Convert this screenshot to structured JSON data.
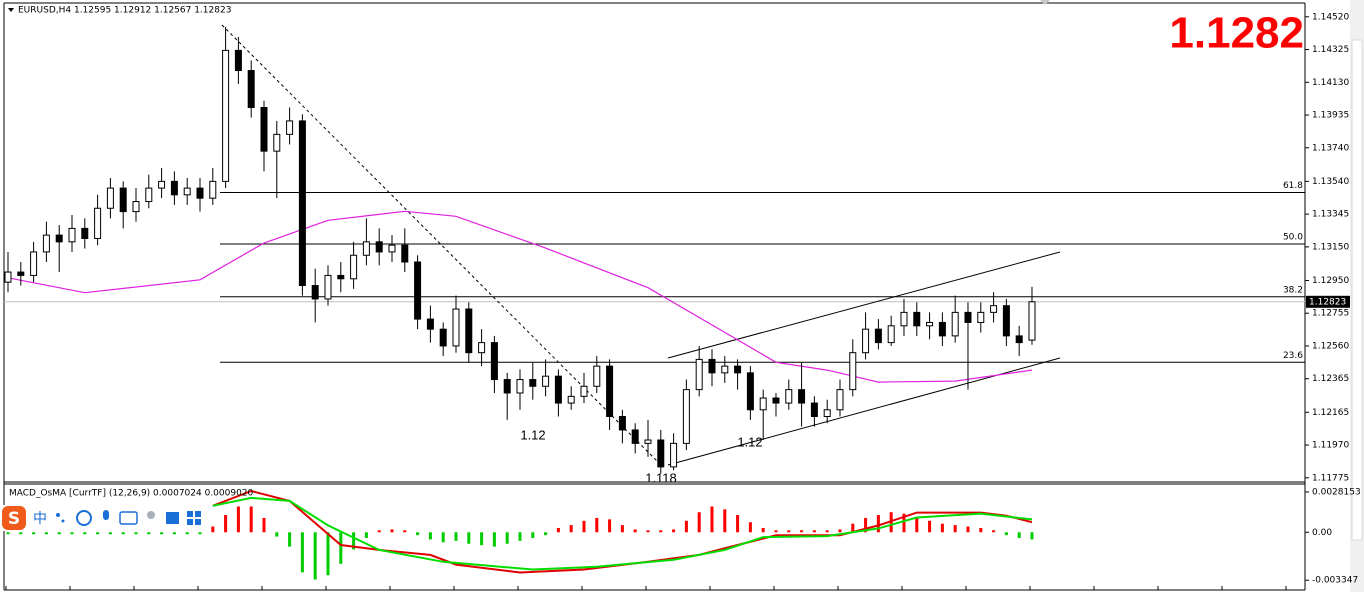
{
  "chart_data": [
    {
      "type": "candlestick",
      "header": "EURUSD,H4  1.12595 1.12912 1.12567 1.12823",
      "big_price": "1.1282",
      "xlim": [
        -0.3125,
        101.33
      ],
      "ylim": [
        1.1175,
        1.1462
      ],
      "yticks": [
        {
          "value": 1.1452,
          "label": "1.14520"
        },
        1.14325,
        {
          "value": 1.1413,
          "label": "1.14130"
        },
        1.13935,
        {
          "value": 1.1374,
          "label": "1.13740"
        },
        {
          "value": 1.1354,
          "label": "1.13540"
        },
        1.13345,
        {
          "value": 1.1315,
          "label": "1.13150"
        },
        {
          "value": 1.1295,
          "label": "1.12950"
        },
        1.12755,
        {
          "value": 1.1256,
          "label": "1.12560"
        },
        1.12365,
        1.12165,
        {
          "value": 1.1197,
          "label": "1.11970"
        },
        1.11775
      ],
      "open": [
        1.1294,
        1.13,
        1.1298,
        1.1312,
        1.1322,
        1.1318,
        1.1326,
        1.132,
        1.1338,
        1.135,
        1.1336,
        1.1342,
        1.135,
        1.1354,
        1.1346,
        1.135,
        1.1344,
        1.1354,
        1.1432,
        1.142,
        1.1398,
        1.1372,
        1.1382,
        1.139,
        1.1292,
        1.1284,
        1.1298,
        1.1296,
        1.131,
        1.1318,
        1.1312,
        1.1316,
        1.1306,
        1.1272,
        1.1266,
        1.1256,
        1.1278,
        1.1252,
        1.1258,
        1.1236,
        1.1228,
        1.1236,
        1.1232,
        1.1238,
        1.1222,
        1.1226,
        1.1232,
        1.1244,
        1.1214,
        1.1206,
        1.1198,
        1.12,
        1.1184,
        1.1198,
        1.123,
        1.1248,
        1.124,
        1.1244,
        1.124,
        1.1218,
        1.1225,
        1.1222,
        1.123,
        1.1222,
        1.1214,
        1.1218,
        1.123,
        1.1252,
        1.1266,
        1.1258,
        1.1268,
        1.1276,
        1.1268,
        1.127,
        1.1262,
        1.1276,
        1.127,
        1.1276,
        1.128,
        1.1262,
        1.12595
      ],
      "high": [
        1.1312,
        1.1306,
        1.1318,
        1.133,
        1.1328,
        1.1334,
        1.1332,
        1.1346,
        1.1356,
        1.1354,
        1.135,
        1.1358,
        1.1362,
        1.136,
        1.1356,
        1.1356,
        1.1362,
        1.1446,
        1.144,
        1.1426,
        1.1402,
        1.139,
        1.1398,
        1.1394,
        1.1302,
        1.1304,
        1.1306,
        1.1318,
        1.1332,
        1.1326,
        1.1322,
        1.1326,
        1.131,
        1.128,
        1.127,
        1.1286,
        1.1282,
        1.1266,
        1.1262,
        1.124,
        1.1242,
        1.1246,
        1.1248,
        1.1242,
        1.1232,
        1.124,
        1.125,
        1.1248,
        1.1218,
        1.121,
        1.1212,
        1.1206,
        1.1204,
        1.1236,
        1.1256,
        1.1254,
        1.125,
        1.1248,
        1.1244,
        1.123,
        1.1228,
        1.1236,
        1.1246,
        1.1226,
        1.1224,
        1.1236,
        1.126,
        1.1276,
        1.1272,
        1.1274,
        1.1284,
        1.1282,
        1.1276,
        1.1276,
        1.1286,
        1.1282,
        1.1282,
        1.1288,
        1.1284,
        1.1268,
        1.12912
      ],
      "low": [
        1.1288,
        1.1292,
        1.1294,
        1.1306,
        1.13,
        1.1312,
        1.1314,
        1.1316,
        1.1332,
        1.1326,
        1.133,
        1.1338,
        1.1344,
        1.134,
        1.134,
        1.1336,
        1.134,
        1.135,
        1.1412,
        1.1392,
        1.136,
        1.1344,
        1.1376,
        1.1286,
        1.127,
        1.128,
        1.1288,
        1.129,
        1.1304,
        1.1304,
        1.1306,
        1.13,
        1.1266,
        1.1258,
        1.125,
        1.1252,
        1.1246,
        1.1244,
        1.1228,
        1.1212,
        1.1218,
        1.1224,
        1.1226,
        1.1214,
        1.1218,
        1.1222,
        1.1228,
        1.1206,
        1.1198,
        1.1192,
        1.119,
        1.118,
        1.1182,
        1.1194,
        1.1226,
        1.1232,
        1.1234,
        1.123,
        1.1212,
        1.12,
        1.1214,
        1.1218,
        1.1208,
        1.1208,
        1.121,
        1.1214,
        1.1226,
        1.1248,
        1.1254,
        1.1256,
        1.1262,
        1.1262,
        1.126,
        1.1256,
        1.1258,
        1.123,
        1.1264,
        1.127,
        1.1256,
        1.125,
        1.12567
      ],
      "close": [
        1.13,
        1.1298,
        1.1312,
        1.1322,
        1.1318,
        1.1326,
        1.132,
        1.1338,
        1.135,
        1.1336,
        1.1342,
        1.135,
        1.1354,
        1.1346,
        1.135,
        1.1344,
        1.1354,
        1.1432,
        1.142,
        1.1398,
        1.1372,
        1.1382,
        1.139,
        1.1292,
        1.1284,
        1.1298,
        1.1296,
        1.131,
        1.1318,
        1.1312,
        1.1316,
        1.1306,
        1.1272,
        1.1266,
        1.1256,
        1.1278,
        1.1252,
        1.1258,
        1.1236,
        1.1228,
        1.1236,
        1.1232,
        1.1238,
        1.1222,
        1.1226,
        1.1232,
        1.1244,
        1.1214,
        1.1206,
        1.1198,
        1.12,
        1.1184,
        1.1198,
        1.123,
        1.1248,
        1.124,
        1.1244,
        1.124,
        1.1218,
        1.1225,
        1.1222,
        1.123,
        1.1222,
        1.1214,
        1.1218,
        1.123,
        1.1252,
        1.1266,
        1.1258,
        1.1268,
        1.1276,
        1.1268,
        1.127,
        1.1262,
        1.1276,
        1.127,
        1.1276,
        1.128,
        1.1262,
        1.1258,
        1.12823
      ],
      "bull_color": "#ffffff",
      "bear_color": "#000000",
      "ma": {
        "color": "#e020e0",
        "x": [
          0,
          6,
          15,
          20,
          25,
          31,
          35,
          42,
          50,
          56,
          60,
          64,
          68,
          74,
          80
        ],
        "values": [
          1.12966,
          1.12877,
          1.12954,
          1.13173,
          1.13308,
          1.13362,
          1.13332,
          1.13143,
          1.12907,
          1.12641,
          1.12463,
          1.12416,
          1.12345,
          1.12351,
          1.12416
        ]
      },
      "fib_levels": [
        {
          "value": 1.13474,
          "label": "61.8"
        },
        {
          "value": 1.13167,
          "label": "50.0"
        },
        {
          "value": 1.12853,
          "label": "38.2"
        },
        {
          "value": 1.12463,
          "label": "23.6"
        }
      ],
      "last_price": {
        "value": 1.12823,
        "label": "1.12823"
      },
      "annotations": [
        "1.12",
        "1.12",
        "1.118"
      ],
      "ime": "中"
    },
    {
      "type": "bar",
      "title": "MACD_OsMA [CurrTF] (12,26,9) 0.0007024 0.0009020",
      "xlim": [
        -0.3125,
        101.33
      ],
      "ylim": [
        -0.00403,
        0.0033
      ],
      "yticks": [
        0.0028153,
        {
          "value": 0,
          "label": "0.00"
        },
        -0.003347
      ],
      "values": [
        -5e-05,
        -5e-05,
        -5e-05,
        -5e-05,
        -5e-05,
        -5e-05,
        -5e-05,
        -5e-05,
        -5e-05,
        -5e-05,
        -5e-05,
        -5e-05,
        -5e-05,
        -5e-05,
        -5e-05,
        -5e-05,
        0.0004,
        0.0012,
        0.0018,
        0.0018,
        0.001,
        -0.0003,
        -0.001,
        -0.0028,
        -0.0033,
        -0.003,
        -0.0022,
        -0.0012,
        -0.0004,
        0.0001,
        0.0002,
        0.0001,
        -0.0002,
        -0.0005,
        -0.0007,
        -0.0006,
        -0.0008,
        -0.0009,
        -0.001,
        -0.0008,
        -0.0006,
        -0.0004,
        -0.0002,
        0.0003,
        0.0005,
        0.0008,
        0.001,
        0.0009,
        0.0005,
        0.0002,
        0.0001,
        0.0001,
        0.0002,
        0.0008,
        0.0014,
        0.0018,
        0.0016,
        0.0012,
        0.0007,
        0.0003,
        0.0001,
        5e-05,
        0.0001,
        5e-05,
        0.0001,
        0.0002,
        0.0006,
        0.001,
        0.0012,
        0.0014,
        0.0013,
        0.001,
        0.0008,
        0.0006,
        0.0005,
        0.0004,
        0.0003,
        0.0001,
        -0.0002,
        -0.0004,
        -0.0005
      ],
      "pos_color": "#ff0000",
      "neg_color": "#00cc00",
      "lines": [
        {
          "color": "#e00000",
          "x": [
            16,
            19,
            22,
            26,
            29,
            33,
            35,
            40,
            45,
            50,
            54,
            57,
            60,
            65,
            68,
            71,
            76,
            78,
            80
          ],
          "values": [
            0.00185,
            0.00288,
            0.00219,
            -0.00089,
            -0.00123,
            -0.00158,
            -0.00226,
            -0.00281,
            -0.0026,
            -0.00206,
            -0.00158,
            -0.00089,
            -0.00021,
            -0.00021,
            0.00048,
            0.00137,
            0.00137,
            0.00116,
            0.0007024
          ]
        },
        {
          "color": "#00dd00",
          "x": [
            16,
            19,
            22,
            25,
            29,
            34,
            41,
            46,
            52,
            56,
            59,
            64,
            68,
            71,
            76,
            80
          ],
          "values": [
            0.00185,
            0.0024,
            0.00219,
            0.00048,
            -0.00123,
            -0.00206,
            -0.0026,
            -0.0024,
            -0.00192,
            -0.00123,
            -0.00034,
            -0.00027,
            0.00027,
            0.00103,
            0.0013,
            0.000902
          ]
        }
      ]
    }
  ]
}
